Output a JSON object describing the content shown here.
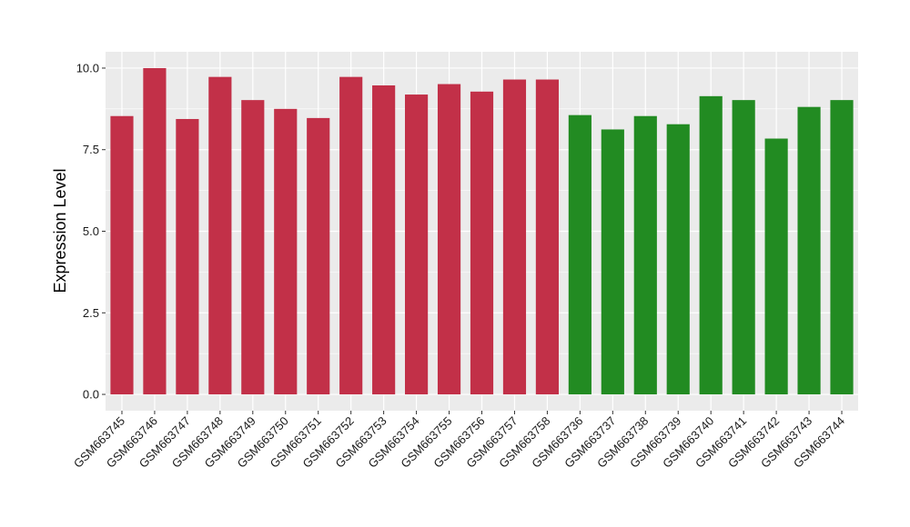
{
  "chart_data": {
    "type": "bar",
    "title": "",
    "xlabel": "",
    "ylabel": "Expression Level",
    "ylim": [
      -0.5,
      10.5
    ],
    "yticks": [
      0.0,
      2.5,
      5.0,
      7.5,
      10.0
    ],
    "ytick_labels": [
      "0.0",
      "2.5",
      "5.0",
      "7.5",
      "10.0"
    ],
    "grid": true,
    "background": "#EBEBEB",
    "gridline_color": "#FFFFFF",
    "categories": [
      "GSM663745",
      "GSM663746",
      "GSM663747",
      "GSM663748",
      "GSM663749",
      "GSM663750",
      "GSM663751",
      "GSM663752",
      "GSM663753",
      "GSM663754",
      "GSM663755",
      "GSM663756",
      "GSM663757",
      "GSM663758",
      "GSM663736",
      "GSM663737",
      "GSM663738",
      "GSM663739",
      "GSM663740",
      "GSM663741",
      "GSM663742",
      "GSM663743",
      "GSM663744"
    ],
    "values": [
      8.53,
      10.0,
      8.44,
      9.73,
      9.02,
      8.75,
      8.47,
      9.73,
      9.47,
      9.19,
      9.51,
      9.28,
      9.65,
      9.65,
      8.56,
      8.12,
      8.53,
      8.28,
      9.14,
      9.02,
      7.84,
      8.81,
      9.02
    ],
    "colors": [
      "#C23048",
      "#C23048",
      "#C23048",
      "#C23048",
      "#C23048",
      "#C23048",
      "#C23048",
      "#C23048",
      "#C23048",
      "#C23048",
      "#C23048",
      "#C23048",
      "#C23048",
      "#C23048",
      "#228B22",
      "#228B22",
      "#228B22",
      "#228B22",
      "#228B22",
      "#228B22",
      "#228B22",
      "#228B22",
      "#228B22"
    ]
  }
}
